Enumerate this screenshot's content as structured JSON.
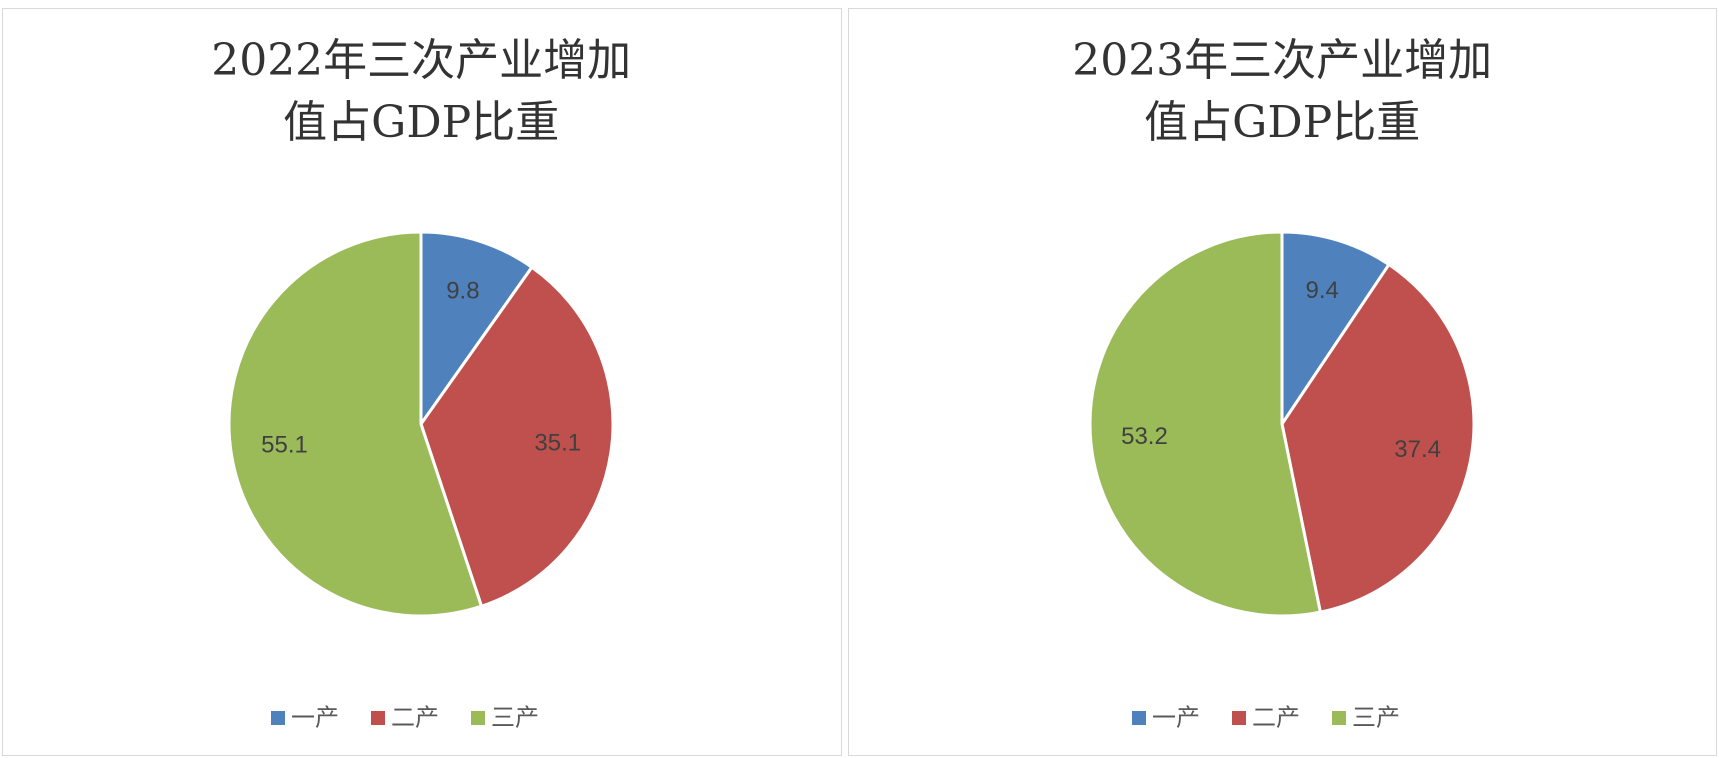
{
  "chart_data": [
    {
      "type": "pie",
      "title": "2022年三次产业增加值占GDP比重",
      "categories": [
        "一产",
        "二产",
        "三产"
      ],
      "values": [
        9.8,
        35.1,
        55.1
      ],
      "colors": [
        "#4f81bd",
        "#c0504d",
        "#9bbb59"
      ],
      "legend": "bottom"
    },
    {
      "type": "pie",
      "title": "2023年三次产业增加值占GDP比重",
      "categories": [
        "一产",
        "二产",
        "三产"
      ],
      "values": [
        9.4,
        37.4,
        53.2
      ],
      "colors": [
        "#4f81bd",
        "#c0504d",
        "#9bbb59"
      ],
      "legend": "bottom"
    }
  ]
}
